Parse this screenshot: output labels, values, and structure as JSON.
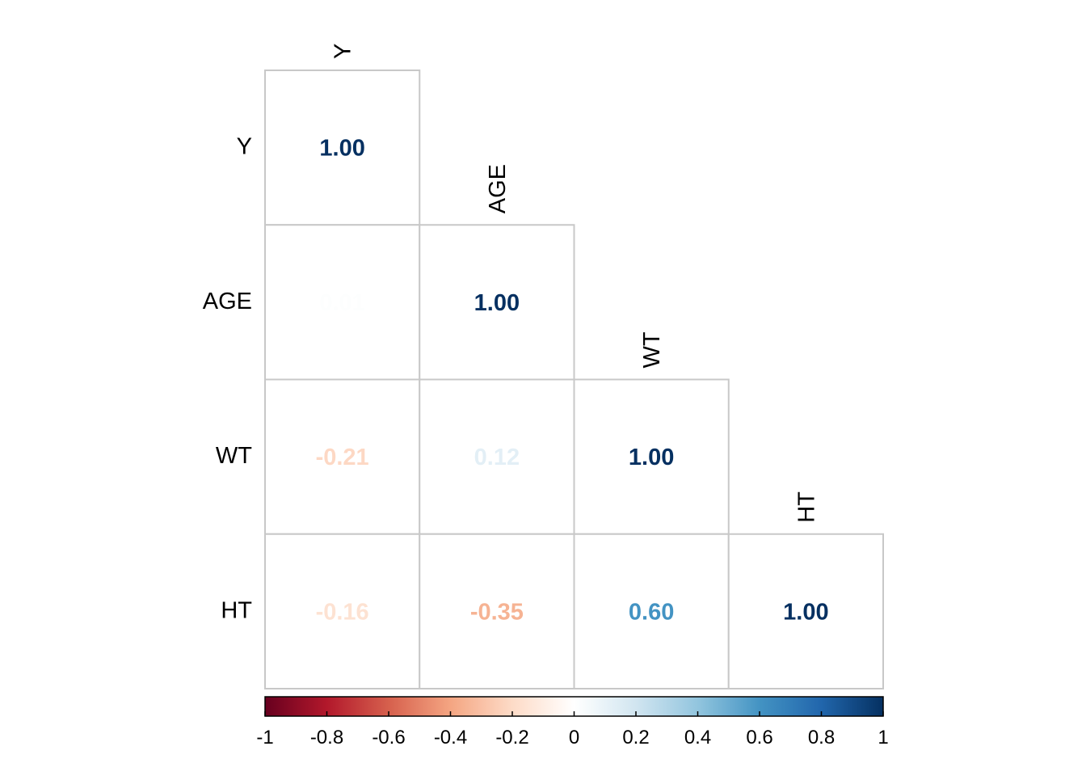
{
  "chart_data": {
    "type": "heatmap",
    "variables": [
      "Y",
      "AGE",
      "WT",
      "HT"
    ],
    "matrix": [
      [
        1.0,
        0.01,
        -0.21,
        -0.16
      ],
      [
        0.01,
        1.0,
        0.12,
        -0.35
      ],
      [
        -0.21,
        0.12,
        1.0,
        0.6
      ],
      [
        -0.16,
        -0.35,
        0.6,
        1.0
      ]
    ],
    "display": "lower-triangle",
    "value_format": "2-decimals",
    "colorbar": {
      "range": [
        -1,
        1
      ],
      "ticks": [
        -1,
        -0.8,
        -0.6,
        -0.4,
        -0.2,
        0,
        0.2,
        0.4,
        0.6,
        0.8,
        1
      ],
      "tick_labels": [
        "-1",
        "-0.8",
        "-0.6",
        "-0.4",
        "-0.2",
        "0",
        "0.2",
        "0.4",
        "0.6",
        "0.8",
        "1"
      ],
      "placement": "bottom",
      "colors": [
        "#67001F",
        "#B2182B",
        "#D6604D",
        "#F4A582",
        "#FDDBC7",
        "#FFFFFF",
        "#D1E5F0",
        "#92C5DE",
        "#4393C3",
        "#2166AC",
        "#053061"
      ]
    },
    "grid_color": "#C8C8C8"
  }
}
